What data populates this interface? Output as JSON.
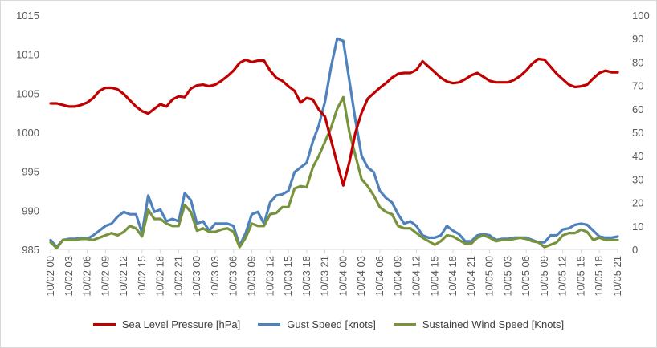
{
  "chart_data": {
    "type": "line",
    "grid": false,
    "legend_position": "bottom",
    "y_left": {
      "min": 985,
      "max": 1015,
      "ticks": [
        985,
        990,
        995,
        1000,
        1005,
        1010,
        1015
      ]
    },
    "y_right": {
      "min": 0,
      "max": 100,
      "ticks": [
        0,
        10,
        20,
        30,
        40,
        50,
        60,
        70,
        80,
        90,
        100
      ]
    },
    "x_labels": [
      "10/02 00",
      "10/02 03",
      "10/02 06",
      "10/02 09",
      "10/02 12",
      "10/02 15",
      "10/02 18",
      "10/02 21",
      "10/03 00",
      "10/03 03",
      "10/03 06",
      "10/03 09",
      "10/03 12",
      "10/03 15",
      "10/03 18",
      "10/03 21",
      "10/04 00",
      "10/04 03",
      "10/04 06",
      "10/04 09",
      "10/04 12",
      "10/04 15",
      "10/04 18",
      "10/04 21",
      "10/05 00",
      "10/05 03",
      "10/05 06",
      "10/05 09",
      "10/05 12",
      "10/05 15",
      "10/05 18",
      "10/05 21"
    ],
    "x_hours": [
      0,
      3,
      6,
      9,
      12,
      15,
      18,
      21,
      24,
      27,
      30,
      33,
      36,
      39,
      42,
      45,
      48,
      51,
      54,
      57,
      60,
      63,
      66,
      69,
      72,
      75,
      78,
      81,
      84,
      87,
      90,
      93
    ],
    "series": [
      {
        "name": "Sea Level Pressure  [hPa]",
        "axis": "left",
        "color": "#c00000",
        "points": [
          [
            0,
            1003.7
          ],
          [
            1,
            1003.7
          ],
          [
            2,
            1003.5
          ],
          [
            3,
            1003.3
          ],
          [
            4,
            1003.3
          ],
          [
            5,
            1003.5
          ],
          [
            6,
            1003.8
          ],
          [
            7,
            1004.4
          ],
          [
            8,
            1005.3
          ],
          [
            9,
            1005.7
          ],
          [
            10,
            1005.7
          ],
          [
            11,
            1005.5
          ],
          [
            12,
            1004.9
          ],
          [
            13,
            1004.1
          ],
          [
            14,
            1003.3
          ],
          [
            15,
            1002.7
          ],
          [
            16,
            1002.4
          ],
          [
            17,
            1003.0
          ],
          [
            18,
            1003.6
          ],
          [
            19,
            1003.3
          ],
          [
            20,
            1004.2
          ],
          [
            21,
            1004.6
          ],
          [
            22,
            1004.5
          ],
          [
            23,
            1005.6
          ],
          [
            24,
            1006.0
          ],
          [
            25,
            1006.1
          ],
          [
            26,
            1005.9
          ],
          [
            27,
            1006.1
          ],
          [
            28,
            1006.6
          ],
          [
            29,
            1007.2
          ],
          [
            30,
            1007.9
          ],
          [
            31,
            1008.9
          ],
          [
            32,
            1009.3
          ],
          [
            33,
            1009.0
          ],
          [
            34,
            1009.2
          ],
          [
            35,
            1009.2
          ],
          [
            36,
            1007.9
          ],
          [
            37,
            1007.0
          ],
          [
            38,
            1006.6
          ],
          [
            39,
            1005.9
          ],
          [
            40,
            1005.3
          ],
          [
            41,
            1003.8
          ],
          [
            42,
            1004.4
          ],
          [
            43,
            1004.2
          ],
          [
            44,
            1002.9
          ],
          [
            45,
            1002.0
          ],
          [
            46,
            999.0
          ],
          [
            47,
            996.0
          ],
          [
            48,
            993.2
          ],
          [
            49,
            996.2
          ],
          [
            50,
            1000.0
          ],
          [
            51,
            1002.5
          ],
          [
            52,
            1004.3
          ],
          [
            53,
            1005.0
          ],
          [
            54,
            1005.7
          ],
          [
            55,
            1006.3
          ],
          [
            56,
            1007.0
          ],
          [
            57,
            1007.5
          ],
          [
            58,
            1007.6
          ],
          [
            59,
            1007.6
          ],
          [
            60,
            1008.0
          ],
          [
            61,
            1009.1
          ],
          [
            62,
            1008.4
          ],
          [
            63,
            1007.7
          ],
          [
            64,
            1007.0
          ],
          [
            65,
            1006.5
          ],
          [
            66,
            1006.3
          ],
          [
            67,
            1006.4
          ],
          [
            68,
            1006.8
          ],
          [
            69,
            1007.3
          ],
          [
            70,
            1007.6
          ],
          [
            71,
            1007.1
          ],
          [
            72,
            1006.6
          ],
          [
            73,
            1006.4
          ],
          [
            74,
            1006.4
          ],
          [
            75,
            1006.4
          ],
          [
            76,
            1006.7
          ],
          [
            77,
            1007.2
          ],
          [
            78,
            1007.9
          ],
          [
            79,
            1008.8
          ],
          [
            80,
            1009.4
          ],
          [
            81,
            1009.3
          ],
          [
            82,
            1008.4
          ],
          [
            83,
            1007.5
          ],
          [
            84,
            1006.8
          ],
          [
            85,
            1006.1
          ],
          [
            86,
            1005.8
          ],
          [
            87,
            1005.9
          ],
          [
            88,
            1006.1
          ],
          [
            89,
            1006.9
          ],
          [
            90,
            1007.6
          ],
          [
            91,
            1007.9
          ],
          [
            92,
            1007.7
          ],
          [
            93,
            1007.7
          ]
        ]
      },
      {
        "name": "Gust Speed [knots]",
        "axis": "right",
        "color": "#4f81bd",
        "points": [
          [
            0,
            4
          ],
          [
            1,
            1
          ],
          [
            2,
            4
          ],
          [
            3,
            4.5
          ],
          [
            4,
            4.5
          ],
          [
            5,
            5
          ],
          [
            6,
            4.5
          ],
          [
            7,
            6
          ],
          [
            8,
            8
          ],
          [
            9,
            10
          ],
          [
            10,
            11
          ],
          [
            11,
            14
          ],
          [
            12,
            16
          ],
          [
            13,
            15
          ],
          [
            14,
            15
          ],
          [
            15,
            7
          ],
          [
            16,
            23
          ],
          [
            17,
            16
          ],
          [
            18,
            17
          ],
          [
            19,
            12
          ],
          [
            20,
            13
          ],
          [
            21,
            12
          ],
          [
            22,
            24
          ],
          [
            23,
            21
          ],
          [
            24,
            11
          ],
          [
            25,
            12
          ],
          [
            26,
            8
          ],
          [
            27,
            11
          ],
          [
            28,
            11
          ],
          [
            29,
            11
          ],
          [
            30,
            10
          ],
          [
            31,
            1.5
          ],
          [
            32,
            7
          ],
          [
            33,
            15
          ],
          [
            34,
            16
          ],
          [
            35,
            11
          ],
          [
            36,
            20
          ],
          [
            37,
            23
          ],
          [
            38,
            23.5
          ],
          [
            39,
            25
          ],
          [
            40,
            33
          ],
          [
            41,
            35
          ],
          [
            42,
            37
          ],
          [
            43,
            46
          ],
          [
            44,
            53
          ],
          [
            45,
            63
          ],
          [
            46,
            78
          ],
          [
            47,
            90
          ],
          [
            48,
            89
          ],
          [
            49,
            72
          ],
          [
            50,
            55
          ],
          [
            51,
            40
          ],
          [
            52,
            35
          ],
          [
            53,
            33
          ],
          [
            54,
            25
          ],
          [
            55,
            22
          ],
          [
            56,
            20
          ],
          [
            57,
            15
          ],
          [
            58,
            11
          ],
          [
            59,
            12
          ],
          [
            60,
            10
          ],
          [
            61,
            6
          ],
          [
            62,
            5
          ],
          [
            63,
            5
          ],
          [
            64,
            6
          ],
          [
            65,
            10
          ],
          [
            66,
            8
          ],
          [
            67,
            6.5
          ],
          [
            68,
            3.5
          ],
          [
            69,
            3.5
          ],
          [
            70,
            6
          ],
          [
            71,
            6.5
          ],
          [
            72,
            6
          ],
          [
            73,
            4
          ],
          [
            74,
            4.5
          ],
          [
            75,
            4.5
          ],
          [
            76,
            5
          ],
          [
            77,
            5
          ],
          [
            78,
            5
          ],
          [
            79,
            4
          ],
          [
            80,
            3
          ],
          [
            81,
            3
          ],
          [
            82,
            6
          ],
          [
            83,
            6
          ],
          [
            84,
            8.5
          ],
          [
            85,
            9
          ],
          [
            86,
            10.5
          ],
          [
            87,
            11
          ],
          [
            88,
            10.5
          ],
          [
            89,
            8
          ],
          [
            90,
            5.5
          ],
          [
            91,
            5
          ],
          [
            92,
            5
          ],
          [
            93,
            5.5
          ]
        ]
      },
      {
        "name": "Sustained Wind Speed [Knots]",
        "axis": "right",
        "color": "#77933c",
        "points": [
          [
            0,
            3
          ],
          [
            1,
            0.5
          ],
          [
            2,
            4
          ],
          [
            3,
            4
          ],
          [
            4,
            4
          ],
          [
            5,
            4.5
          ],
          [
            6,
            4.5
          ],
          [
            7,
            4
          ],
          [
            8,
            5
          ],
          [
            9,
            6
          ],
          [
            10,
            7
          ],
          [
            11,
            6
          ],
          [
            12,
            7.5
          ],
          [
            13,
            10
          ],
          [
            14,
            9
          ],
          [
            15,
            5.5
          ],
          [
            16,
            17
          ],
          [
            17,
            13
          ],
          [
            18,
            13
          ],
          [
            19,
            11
          ],
          [
            20,
            10
          ],
          [
            21,
            10
          ],
          [
            22,
            19
          ],
          [
            23,
            16
          ],
          [
            24,
            8
          ],
          [
            25,
            9
          ],
          [
            26,
            7.5
          ],
          [
            27,
            7.5
          ],
          [
            28,
            8.5
          ],
          [
            29,
            9
          ],
          [
            30,
            7.5
          ],
          [
            31,
            1
          ],
          [
            32,
            5
          ],
          [
            33,
            11
          ],
          [
            34,
            10
          ],
          [
            35,
            10
          ],
          [
            36,
            15
          ],
          [
            37,
            15.5
          ],
          [
            38,
            18
          ],
          [
            39,
            18
          ],
          [
            40,
            26
          ],
          [
            41,
            27
          ],
          [
            42,
            26.5
          ],
          [
            43,
            35
          ],
          [
            44,
            40
          ],
          [
            45,
            46
          ],
          [
            46,
            52
          ],
          [
            47,
            60
          ],
          [
            48,
            65
          ],
          [
            49,
            50
          ],
          [
            50,
            40
          ],
          [
            51,
            30
          ],
          [
            52,
            27
          ],
          [
            53,
            23
          ],
          [
            54,
            18
          ],
          [
            55,
            16
          ],
          [
            56,
            15
          ],
          [
            57,
            10
          ],
          [
            58,
            9
          ],
          [
            59,
            9
          ],
          [
            60,
            7
          ],
          [
            61,
            5
          ],
          [
            62,
            3.5
          ],
          [
            63,
            2
          ],
          [
            64,
            3.5
          ],
          [
            65,
            6
          ],
          [
            66,
            5.5
          ],
          [
            67,
            4
          ],
          [
            68,
            2.5
          ],
          [
            69,
            2.5
          ],
          [
            70,
            5
          ],
          [
            71,
            6
          ],
          [
            72,
            5
          ],
          [
            73,
            3.5
          ],
          [
            74,
            4
          ],
          [
            75,
            4
          ],
          [
            76,
            4.5
          ],
          [
            77,
            5
          ],
          [
            78,
            4.5
          ],
          [
            79,
            3.5
          ],
          [
            80,
            3
          ],
          [
            81,
            1
          ],
          [
            82,
            2
          ],
          [
            83,
            3
          ],
          [
            84,
            6
          ],
          [
            85,
            7
          ],
          [
            86,
            7
          ],
          [
            87,
            8.5
          ],
          [
            88,
            7.5
          ],
          [
            89,
            4
          ],
          [
            90,
            5
          ],
          [
            91,
            4
          ],
          [
            92,
            4
          ],
          [
            93,
            4
          ]
        ]
      }
    ]
  }
}
